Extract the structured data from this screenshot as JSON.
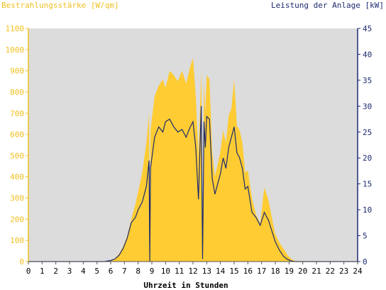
{
  "chart_data": {
    "type": "area",
    "left_axis_title": "Bestrahlungsstärke [W/qm]",
    "right_axis_title": "Leistung der Anlage [kW]",
    "xlabel": "Uhrzeit in Stunden",
    "xlim": [
      0,
      24
    ],
    "x_ticks": [
      "0",
      "1",
      "2",
      "3",
      "4",
      "5",
      "6",
      "7",
      "8",
      "9",
      "10",
      "11",
      "12",
      "13",
      "14",
      "15",
      "16",
      "17",
      "18",
      "19",
      "20",
      "21",
      "22",
      "23",
      "24"
    ],
    "left_ylim": [
      0,
      1100
    ],
    "left_ticks": [
      "0",
      "100",
      "200",
      "300",
      "400",
      "500",
      "600",
      "700",
      "800",
      "900",
      "1000",
      "1100"
    ],
    "right_ylim": [
      0,
      45
    ],
    "right_ticks": [
      "0",
      "5",
      "10",
      "15",
      "20",
      "25",
      "30",
      "35",
      "40",
      "45"
    ],
    "grid": false,
    "colors": {
      "irradiance_fill": "#ffcc33",
      "power_line": "#1c2a6e",
      "plot_background": "#dcdcdc",
      "left_axis": "#f0c020",
      "right_axis": "#1c2a6e"
    },
    "series": [
      {
        "axis": "left",
        "style": "area",
        "x": [
          0,
          5.5,
          6,
          6.3,
          6.6,
          6.9,
          7.2,
          7.5,
          7.8,
          8.0,
          8.3,
          8.6,
          8.8,
          8.85,
          8.9,
          9.2,
          9.5,
          9.8,
          10.0,
          10.3,
          10.6,
          10.9,
          11.2,
          11.5,
          11.8,
          12.0,
          12.2,
          12.4,
          12.6,
          12.7,
          12.8,
          12.9,
          13.0,
          13.2,
          13.4,
          13.6,
          13.8,
          14.0,
          14.2,
          14.4,
          14.6,
          14.8,
          15.0,
          15.2,
          15.4,
          15.6,
          15.8,
          16.0,
          16.3,
          16.6,
          16.9,
          17.2,
          17.5,
          17.8,
          18.0,
          18.3,
          18.6,
          18.9,
          19.2,
          19.5,
          24
        ],
        "values": [
          0,
          0,
          5,
          15,
          35,
          70,
          120,
          200,
          270,
          330,
          420,
          560,
          700,
          0,
          620,
          780,
          830,
          860,
          820,
          900,
          880,
          850,
          900,
          840,
          920,
          960,
          780,
          500,
          900,
          150,
          850,
          700,
          880,
          860,
          520,
          400,
          460,
          520,
          620,
          560,
          690,
          720,
          860,
          640,
          620,
          560,
          420,
          430,
          300,
          220,
          180,
          350,
          290,
          190,
          130,
          90,
          60,
          30,
          10,
          2,
          0
        ]
      },
      {
        "axis": "right",
        "style": "line",
        "x": [
          0,
          5.5,
          6,
          6.3,
          6.6,
          6.9,
          7.2,
          7.5,
          7.8,
          8.0,
          8.3,
          8.6,
          8.8,
          8.85,
          8.9,
          9.2,
          9.5,
          9.8,
          10.0,
          10.3,
          10.6,
          10.9,
          11.2,
          11.5,
          11.8,
          12.0,
          12.2,
          12.4,
          12.6,
          12.7,
          12.8,
          12.9,
          13.0,
          13.2,
          13.4,
          13.6,
          13.8,
          14.0,
          14.2,
          14.4,
          14.6,
          14.8,
          15.0,
          15.2,
          15.4,
          15.6,
          15.8,
          16.0,
          16.3,
          16.6,
          16.9,
          17.2,
          17.5,
          17.8,
          18.0,
          18.3,
          18.6,
          18.9,
          19.2,
          19.5,
          24
        ],
        "values": [
          0,
          0,
          0.2,
          0.5,
          1.2,
          2.5,
          4.5,
          7.5,
          8.5,
          10,
          11.5,
          14.5,
          19.5,
          0,
          18,
          24,
          26,
          25,
          27,
          27.5,
          26,
          25,
          25.5,
          24,
          26,
          27,
          22,
          12,
          30,
          0.5,
          27,
          22,
          28,
          27.5,
          16,
          13,
          15,
          17,
          20,
          18,
          22,
          24,
          26,
          21,
          20,
          18,
          14,
          14.5,
          9.5,
          8.5,
          7,
          9.5,
          8,
          5.5,
          3.8,
          2.2,
          1,
          0.4,
          0.1,
          0,
          0
        ]
      }
    ]
  }
}
